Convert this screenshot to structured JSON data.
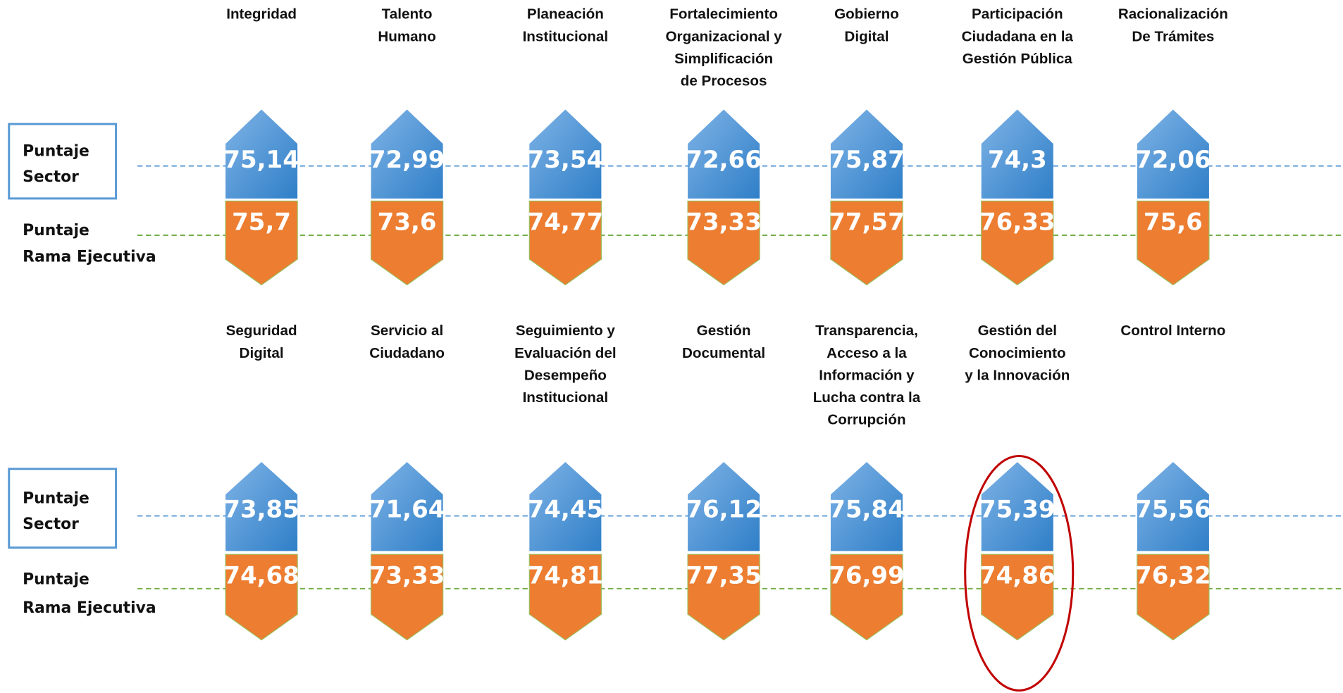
{
  "rows": [
    {
      "sector_label": [
        "Puntaje",
        "Sector"
      ],
      "rama_label": [
        "Puntaje",
        "Rama Ejecutiva"
      ],
      "items": [
        {
          "title": [
            "Integridad"
          ],
          "sector": "75,14",
          "rama": "75,7"
        },
        {
          "title": [
            "Talento",
            "Humano"
          ],
          "sector": "72,99",
          "rama": "73,6"
        },
        {
          "title": [
            "Planeación",
            "Institucional"
          ],
          "sector": "73,54",
          "rama": "74,77"
        },
        {
          "title": [
            "Fortalecimiento",
            "Organizacional y",
            "Simplificación",
            "de Procesos"
          ],
          "sector": "72,66",
          "rama": "73,33"
        },
        {
          "title": [
            "Gobierno",
            "Digital"
          ],
          "sector": "75,87",
          "rama": "77,57"
        },
        {
          "title": [
            "Participación",
            "Ciudadana en la",
            "Gestión Pública"
          ],
          "sector": "74,3",
          "rama": "76,33"
        },
        {
          "title": [
            "Racionalización",
            "De Trámites"
          ],
          "sector": "72,06",
          "rama": "75,6"
        }
      ]
    },
    {
      "sector_label": [
        "Puntaje",
        "Sector"
      ],
      "rama_label": [
        "Puntaje",
        "Rama Ejecutiva"
      ],
      "items": [
        {
          "title": [
            "Seguridad",
            "Digital"
          ],
          "sector": "73,85",
          "rama": "74,68"
        },
        {
          "title": [
            "Servicio al",
            "Ciudadano"
          ],
          "sector": "71,64",
          "rama": "73,33"
        },
        {
          "title": [
            "Seguimiento y",
            "Evaluación del",
            "Desempeño",
            "Institucional"
          ],
          "sector": "74,45",
          "rama": "74,81"
        },
        {
          "title": [
            "Gestión",
            "Documental"
          ],
          "sector": "76,12",
          "rama": "77,35"
        },
        {
          "title": [
            "Transparencia,",
            "Acceso a la",
            "Información y",
            "Lucha contra la",
            "Corrupción"
          ],
          "sector": "75,84",
          "rama": "76,99"
        },
        {
          "title": [
            "Gestión del",
            "Conocimiento",
            "y la Innovación"
          ],
          "sector": "75,39",
          "rama": "74,86"
        },
        {
          "title": [
            "Control Interno"
          ],
          "sector": "75,56",
          "rama": "76,32"
        }
      ]
    }
  ]
}
